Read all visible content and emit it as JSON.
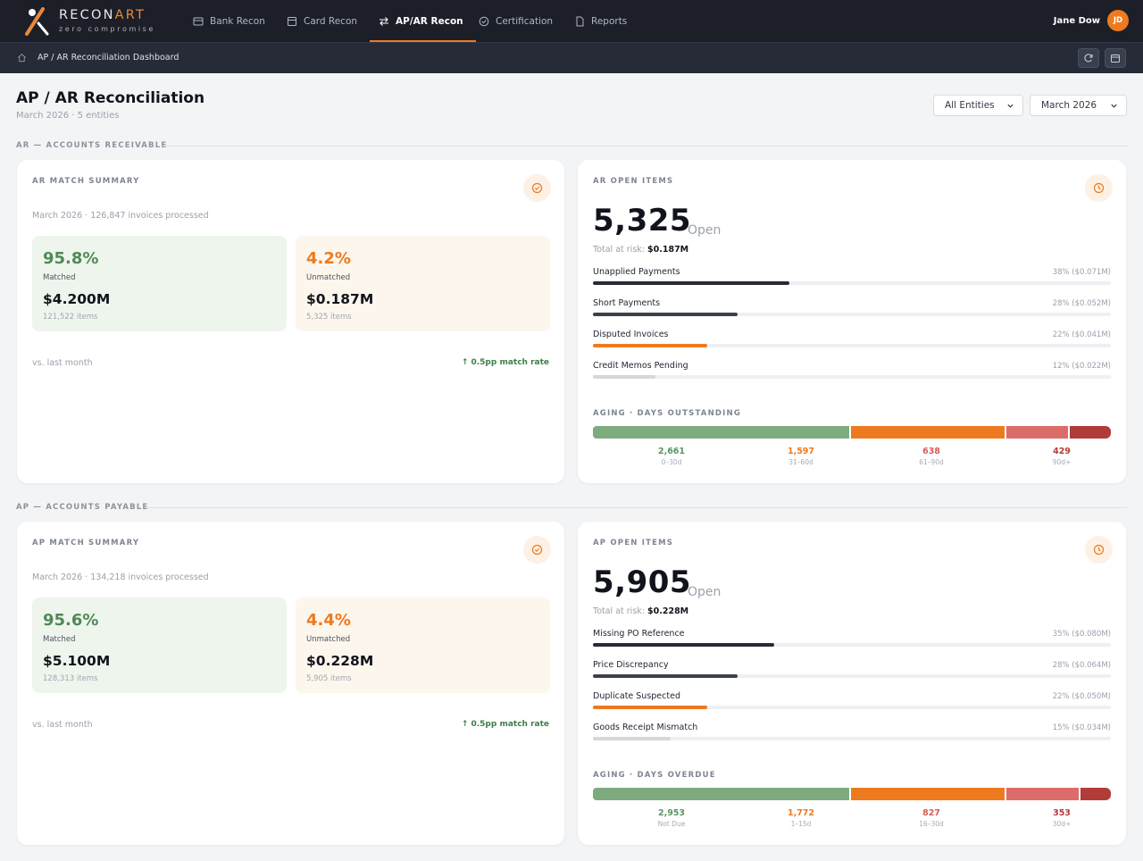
{
  "brand": {
    "name_a": "RECON",
    "name_b": "ART",
    "tagline": "zero compromise"
  },
  "nav": [
    {
      "label": "Bank Recon",
      "icon": "bank-icon"
    },
    {
      "label": "Card Recon",
      "icon": "card-icon"
    },
    {
      "label": "AP/AR Recon",
      "icon": "swap-icon",
      "active": true
    },
    {
      "label": "Certification",
      "icon": "check-circle-icon"
    },
    {
      "label": "Reports",
      "icon": "document-icon"
    }
  ],
  "user": {
    "name": "Jane Dow",
    "initials": "JD"
  },
  "breadcrumb": "AP / AR Reconciliation Dashboard",
  "page": {
    "title": "AP / AR Reconciliation",
    "subtitle": "March 2026 · 5 entities",
    "entity_select": "All Entities",
    "period_select": "March 2026"
  },
  "ar": {
    "section_label": "AR — ACCOUNTS RECEIVABLE",
    "match": {
      "title": "AR MATCH SUMMARY",
      "subtitle": "March 2026 · 126,847 invoices processed",
      "matched_pct": "95.8%",
      "matched_label": "Matched",
      "matched_amount": "$4.200M",
      "matched_items": "121,522 items",
      "unmatched_pct": "4.2%",
      "unmatched_label": "Unmatched",
      "unmatched_amount": "$0.187M",
      "unmatched_items": "5,325 items",
      "vs_label": "vs. last month",
      "vs_value": "↑ 0.5pp match rate"
    },
    "open": {
      "title": "AR OPEN ITEMS",
      "count": "5,325",
      "count_word": "Open",
      "risk_label": "Total at risk:",
      "risk_value": "$0.187M",
      "rows": [
        {
          "name": "Unapplied Payments",
          "share": "38% ($0.071M)",
          "fraction": 0.38,
          "color": "#272b37"
        },
        {
          "name": "Short Payments",
          "share": "28% ($0.052M)",
          "fraction": 0.28,
          "color": "#3b404d"
        },
        {
          "name": "Disputed Invoices",
          "share": "22% ($0.041M)",
          "fraction": 0.22,
          "color": "#ee7a1f"
        },
        {
          "name": "Credit Memos Pending",
          "share": "12% ($0.022M)",
          "fraction": 0.12,
          "color": "#d4d6da"
        }
      ],
      "aging_title": "AGING · DAYS OUTSTANDING",
      "aging": [
        {
          "value": "2,661",
          "label": "0–30d",
          "color": "#7dab7e",
          "text_color": "#5a9560"
        },
        {
          "value": "1,597",
          "label": "31–60d",
          "color": "#ee7a1f",
          "text_color": "#ee7a1f"
        },
        {
          "value": "638",
          "label": "61–90d",
          "color": "#db6c6a",
          "text_color": "#d45c58"
        },
        {
          "value": "429",
          "label": "90d+",
          "color": "#b23c38",
          "text_color": "#b23c38"
        }
      ]
    }
  },
  "ap": {
    "section_label": "AP — ACCOUNTS PAYABLE",
    "match": {
      "title": "AP MATCH SUMMARY",
      "subtitle": "March 2026 · 134,218 invoices processed",
      "matched_pct": "95.6%",
      "matched_label": "Matched",
      "matched_amount": "$5.100M",
      "matched_items": "128,313 items",
      "unmatched_pct": "4.4%",
      "unmatched_label": "Unmatched",
      "unmatched_amount": "$0.228M",
      "unmatched_items": "5,905 items",
      "vs_label": "vs. last month",
      "vs_value": "↑ 0.5pp match rate"
    },
    "open": {
      "title": "AP OPEN ITEMS",
      "count": "5,905",
      "count_word": "Open",
      "risk_label": "Total at risk:",
      "risk_value": "$0.228M",
      "rows": [
        {
          "name": "Missing PO Reference",
          "share": "35% ($0.080M)",
          "fraction": 0.35,
          "color": "#272b37"
        },
        {
          "name": "Price Discrepancy",
          "share": "28% ($0.064M)",
          "fraction": 0.28,
          "color": "#3b404d"
        },
        {
          "name": "Duplicate Suspected",
          "share": "22% ($0.050M)",
          "fraction": 0.22,
          "color": "#ee7a1f"
        },
        {
          "name": "Goods Receipt Mismatch",
          "share": "15% ($0.034M)",
          "fraction": 0.15,
          "color": "#d4d6da"
        }
      ],
      "aging_title": "AGING · DAYS OVERDUE",
      "aging": [
        {
          "value": "2,953",
          "label": "Not Due",
          "color": "#7dab7e",
          "text_color": "#5a9560"
        },
        {
          "value": "1,772",
          "label": "1–15d",
          "color": "#ee7a1f",
          "text_color": "#ee7a1f"
        },
        {
          "value": "827",
          "label": "16–30d",
          "color": "#db6c6a",
          "text_color": "#d45c58"
        },
        {
          "value": "353",
          "label": "30d+",
          "color": "#b23c38",
          "text_color": "#b23c38"
        }
      ]
    }
  }
}
